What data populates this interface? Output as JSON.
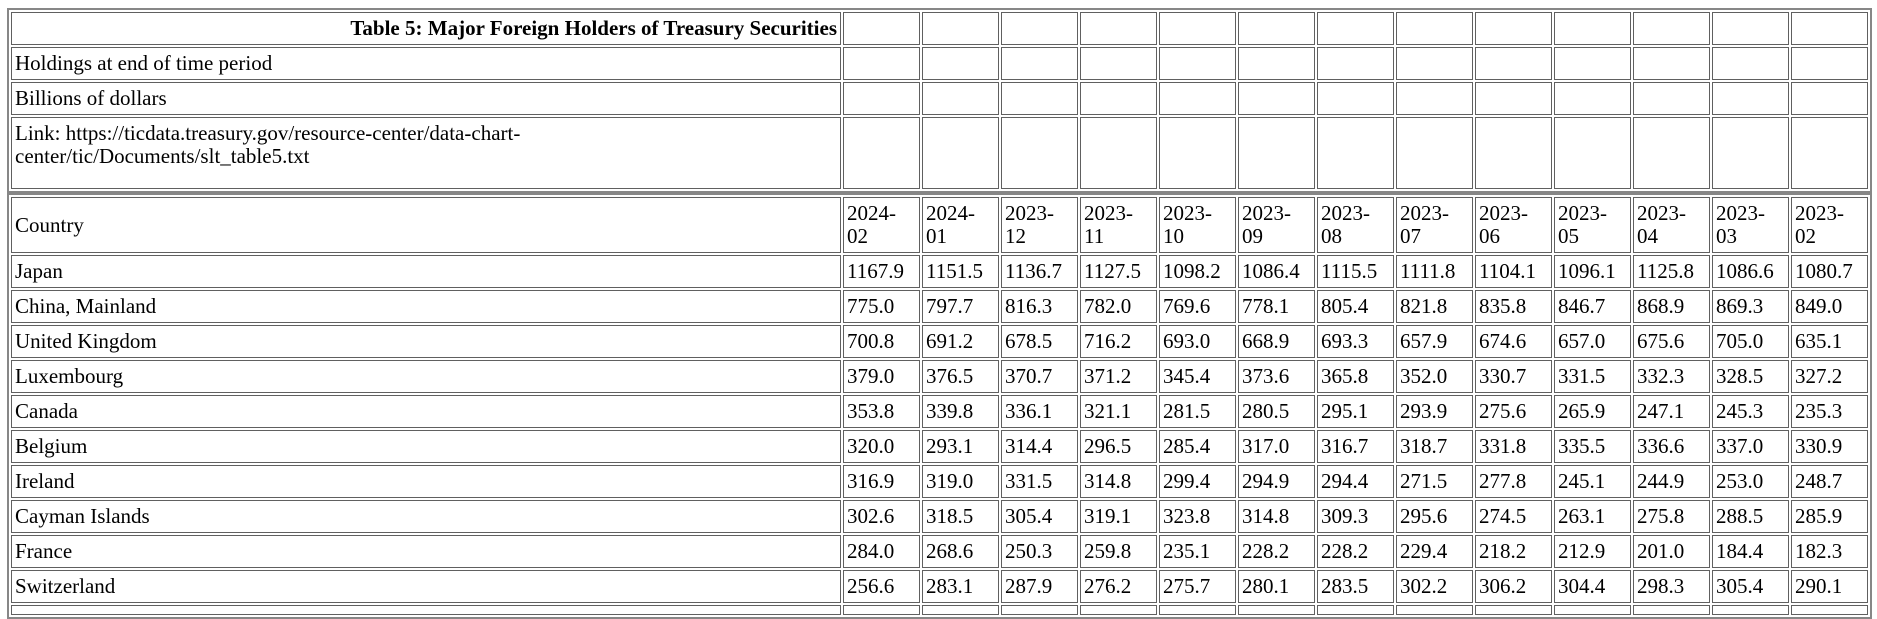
{
  "page": {
    "background": "#ffffff",
    "text_color": "#000000",
    "cell_border_color": "#606060",
    "table_frame_color": "#878787"
  },
  "meta": {
    "title": "Table 5: Major Foreign Holders of Treasury Securities",
    "holdings_note": "Holdings at end of time period",
    "units_note": "Billions of dollars",
    "link_note": "Link: https://ticdata.treasury.gov/resource-center/data-chart-center/tic/Documents/slt_table5.txt"
  },
  "table": {
    "country_header": "Country",
    "columns": [
      "2024-02",
      "2024-01",
      "2023-12",
      "2023-11",
      "2023-10",
      "2023-09",
      "2023-08",
      "2023-07",
      "2023-06",
      "2023-05",
      "2023-04",
      "2023-03",
      "2023-02"
    ],
    "rows": [
      {
        "country": "Japan",
        "values": [
          "1167.9",
          "1151.5",
          "1136.7",
          "1127.5",
          "1098.2",
          "1086.4",
          "1115.5",
          "1111.8",
          "1104.1",
          "1096.1",
          "1125.8",
          "1086.6",
          "1080.7"
        ]
      },
      {
        "country": "China, Mainland",
        "values": [
          "775.0",
          "797.7",
          "816.3",
          "782.0",
          "769.6",
          "778.1",
          "805.4",
          "821.8",
          "835.8",
          "846.7",
          "868.9",
          "869.3",
          "849.0"
        ]
      },
      {
        "country": "United Kingdom",
        "values": [
          "700.8",
          "691.2",
          "678.5",
          "716.2",
          "693.0",
          "668.9",
          "693.3",
          "657.9",
          "674.6",
          "657.0",
          "675.6",
          "705.0",
          "635.1"
        ]
      },
      {
        "country": "Luxembourg",
        "values": [
          "379.0",
          "376.5",
          "370.7",
          "371.2",
          "345.4",
          "373.6",
          "365.8",
          "352.0",
          "330.7",
          "331.5",
          "332.3",
          "328.5",
          "327.2"
        ]
      },
      {
        "country": "Canada",
        "values": [
          "353.8",
          "339.8",
          "336.1",
          "321.1",
          "281.5",
          "280.5",
          "295.1",
          "293.9",
          "275.6",
          "265.9",
          "247.1",
          "245.3",
          "235.3"
        ]
      },
      {
        "country": "Belgium",
        "values": [
          "320.0",
          "293.1",
          "314.4",
          "296.5",
          "285.4",
          "317.0",
          "316.7",
          "318.7",
          "331.8",
          "335.5",
          "336.6",
          "337.0",
          "330.9"
        ]
      },
      {
        "country": "Ireland",
        "values": [
          "316.9",
          "319.0",
          "331.5",
          "314.8",
          "299.4",
          "294.9",
          "294.4",
          "271.5",
          "277.8",
          "245.1",
          "244.9",
          "253.0",
          "248.7"
        ]
      },
      {
        "country": "Cayman Islands",
        "values": [
          "302.6",
          "318.5",
          "305.4",
          "319.1",
          "323.8",
          "314.8",
          "309.3",
          "295.6",
          "274.5",
          "263.1",
          "275.8",
          "288.5",
          "285.9"
        ]
      },
      {
        "country": "France",
        "values": [
          "284.0",
          "268.6",
          "250.3",
          "259.8",
          "235.1",
          "228.2",
          "228.2",
          "229.4",
          "218.2",
          "212.9",
          "201.0",
          "184.4",
          "182.3"
        ]
      },
      {
        "country": "Switzerland",
        "values": [
          "256.6",
          "283.1",
          "287.9",
          "276.2",
          "275.7",
          "280.1",
          "283.5",
          "302.2",
          "306.2",
          "304.4",
          "298.3",
          "305.4",
          "290.1"
        ]
      }
    ]
  },
  "chart_data": {
    "type": "table",
    "title": "Table 5: Major Foreign Holders of Treasury Securities",
    "subtitle": "Holdings at end of time period, Billions of dollars",
    "columns": [
      "Country",
      "2024-02",
      "2024-01",
      "2023-12",
      "2023-11",
      "2023-10",
      "2023-09",
      "2023-08",
      "2023-07",
      "2023-06",
      "2023-05",
      "2023-04",
      "2023-03",
      "2023-02"
    ],
    "series": [
      {
        "name": "Japan",
        "values": [
          1167.9,
          1151.5,
          1136.7,
          1127.5,
          1098.2,
          1086.4,
          1115.5,
          1111.8,
          1104.1,
          1096.1,
          1125.8,
          1086.6,
          1080.7
        ]
      },
      {
        "name": "China, Mainland",
        "values": [
          775.0,
          797.7,
          816.3,
          782.0,
          769.6,
          778.1,
          805.4,
          821.8,
          835.8,
          846.7,
          868.9,
          869.3,
          849.0
        ]
      },
      {
        "name": "United Kingdom",
        "values": [
          700.8,
          691.2,
          678.5,
          716.2,
          693.0,
          668.9,
          693.3,
          657.9,
          674.6,
          657.0,
          675.6,
          705.0,
          635.1
        ]
      },
      {
        "name": "Luxembourg",
        "values": [
          379.0,
          376.5,
          370.7,
          371.2,
          345.4,
          373.6,
          365.8,
          352.0,
          330.7,
          331.5,
          332.3,
          328.5,
          327.2
        ]
      },
      {
        "name": "Canada",
        "values": [
          353.8,
          339.8,
          336.1,
          321.1,
          281.5,
          280.5,
          295.1,
          293.9,
          275.6,
          265.9,
          247.1,
          245.3,
          235.3
        ]
      },
      {
        "name": "Belgium",
        "values": [
          320.0,
          293.1,
          314.4,
          296.5,
          285.4,
          317.0,
          316.7,
          318.7,
          331.8,
          335.5,
          336.6,
          337.0,
          330.9
        ]
      },
      {
        "name": "Ireland",
        "values": [
          316.9,
          319.0,
          331.5,
          314.8,
          299.4,
          294.9,
          294.4,
          271.5,
          277.8,
          245.1,
          244.9,
          253.0,
          248.7
        ]
      },
      {
        "name": "Cayman Islands",
        "values": [
          302.6,
          318.5,
          305.4,
          319.1,
          323.8,
          314.8,
          309.3,
          295.6,
          274.5,
          263.1,
          275.8,
          288.5,
          285.9
        ]
      },
      {
        "name": "France",
        "values": [
          284.0,
          268.6,
          250.3,
          259.8,
          235.1,
          228.2,
          228.2,
          229.4,
          218.2,
          212.9,
          201.0,
          184.4,
          182.3
        ]
      },
      {
        "name": "Switzerland",
        "values": [
          256.6,
          283.1,
          287.9,
          276.2,
          275.7,
          280.1,
          283.5,
          302.2,
          306.2,
          304.4,
          298.3,
          305.4,
          290.1
        ]
      }
    ]
  }
}
